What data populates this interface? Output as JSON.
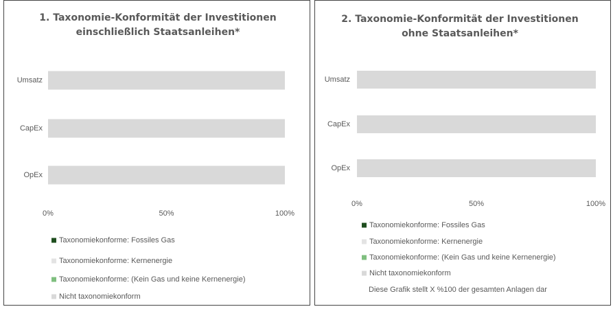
{
  "chart_data": [
    {
      "type": "stacked_barh",
      "title": "1. Taxonomie-Konformität der Investitionen einschließlich Staatsanleihen*",
      "categories": [
        "Umsatz",
        "CapEx",
        "OpEx"
      ],
      "series": [
        {
          "name": "Taxonomiekonforme: Fossiles Gas",
          "color": "#1f4e1f",
          "values": [
            0,
            0,
            0
          ]
        },
        {
          "name": "Taxonomiekonforme: Kernenergie",
          "color": "#e3e3e3",
          "values": [
            0,
            0,
            0
          ]
        },
        {
          "name": "Taxonomiekonforme: (Kein Gas und keine Kernenergie)",
          "color": "#7fbf7f",
          "values": [
            0,
            0,
            0
          ]
        },
        {
          "name": "Nicht taxonomiekonform",
          "color": "#d9d9d9",
          "values": [
            100,
            100,
            100
          ]
        }
      ],
      "xlim": [
        0,
        100
      ],
      "xticks": [
        {
          "value": 0,
          "label": "0%"
        },
        {
          "value": 50,
          "label": "50%"
        },
        {
          "value": 100,
          "label": "100%"
        }
      ]
    },
    {
      "type": "stacked_barh",
      "title": "2. Taxonomie-Konformität der Investitionen ohne Staatsanleihen*",
      "categories": [
        "Umsatz",
        "CapEx",
        "OpEx"
      ],
      "series": [
        {
          "name": "Taxonomiekonforme: Fossiles Gas",
          "color": "#1f4e1f",
          "values": [
            0,
            0,
            0
          ]
        },
        {
          "name": "Taxonomiekonforme: Kernenergie",
          "color": "#e3e3e3",
          "values": [
            0,
            0,
            0
          ]
        },
        {
          "name": "Taxonomiekonforme: (Kein Gas und keine Kernenergie)",
          "color": "#7fbf7f",
          "values": [
            0,
            0,
            0
          ]
        },
        {
          "name": "Nicht taxonomiekonform",
          "color": "#d9d9d9",
          "values": [
            100,
            100,
            100
          ]
        }
      ],
      "xlim": [
        0,
        100
      ],
      "xticks": [
        {
          "value": 0,
          "label": "0%"
        },
        {
          "value": 50,
          "label": "50%"
        },
        {
          "value": 100,
          "label": "100%"
        }
      ],
      "note": "Diese Grafik stellt X %100 der gesamten Anlagen dar"
    }
  ]
}
